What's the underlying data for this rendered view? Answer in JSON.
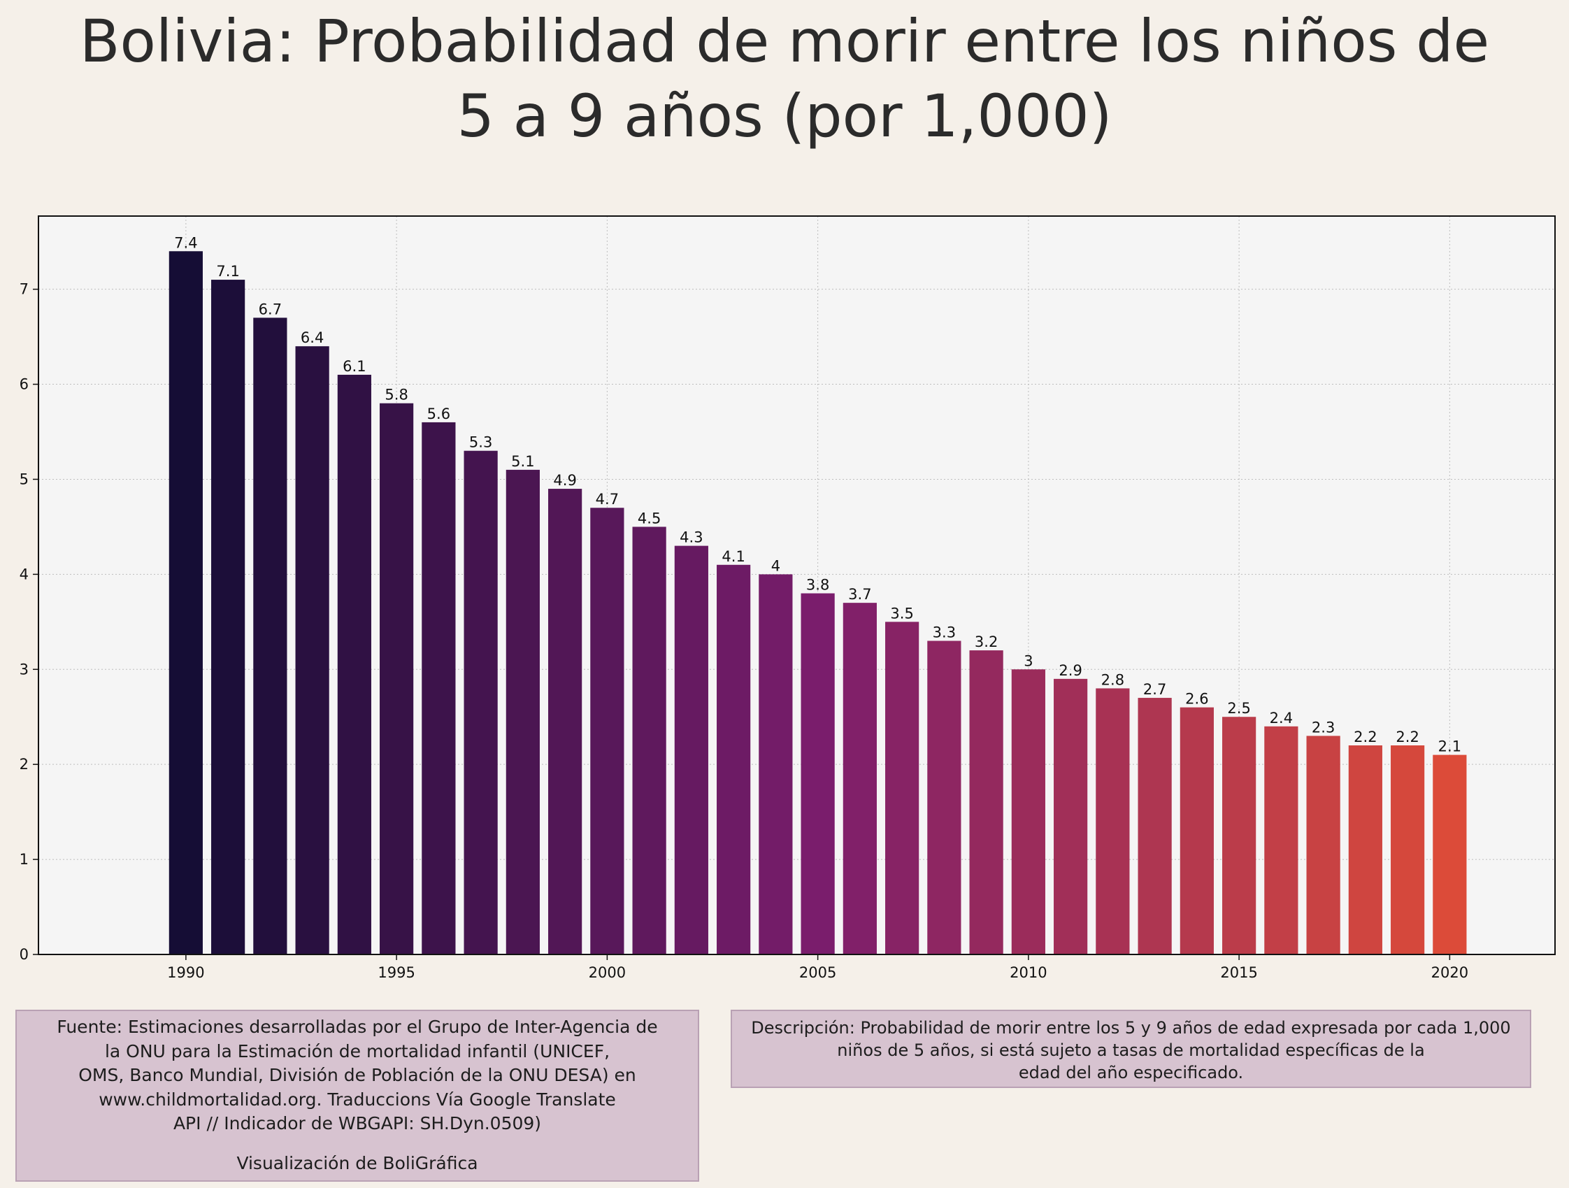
{
  "header": {
    "title_line1": "Bolivia:  Probabilidad de morir entre los niños de",
    "title_line2": "5 a 9 años (por 1,000)"
  },
  "chart_data": {
    "type": "bar",
    "title": "Bolivia:  Probabilidad de morir entre los niños de 5 a 9 años (por 1,000)",
    "xlabel": "",
    "ylabel": "",
    "categories": [
      1990,
      1991,
      1992,
      1993,
      1994,
      1995,
      1996,
      1997,
      1998,
      1999,
      2000,
      2001,
      2002,
      2003,
      2004,
      2005,
      2006,
      2007,
      2008,
      2009,
      2010,
      2011,
      2012,
      2013,
      2014,
      2015,
      2016,
      2017,
      2018,
      2019,
      2020
    ],
    "values": [
      7.4,
      7.1,
      6.7,
      6.4,
      6.1,
      5.8,
      5.6,
      5.3,
      5.1,
      4.9,
      4.7,
      4.5,
      4.3,
      4.1,
      4,
      3.8,
      3.7,
      3.5,
      3.3,
      3.2,
      3,
      2.9,
      2.8,
      2.7,
      2.6,
      2.5,
      2.4,
      2.3,
      2.2,
      2.2,
      2.1
    ],
    "value_labels": [
      "7.4",
      "7.1",
      "6.7",
      "6.4",
      "6.1",
      "5.8",
      "5.6",
      "5.3",
      "5.1",
      "4.9",
      "4.7",
      "4.5",
      "4.3",
      "4.1",
      "4",
      "3.8",
      "3.7",
      "3.5",
      "3.3",
      "3.2",
      "3",
      "2.9",
      "2.8",
      "2.7",
      "2.6",
      "2.5",
      "2.4",
      "2.3",
      "2.2",
      "2.2",
      "2.1"
    ],
    "xlim": [
      1986.5,
      2022.5
    ],
    "ylim": [
      0,
      7.77
    ],
    "xticks": [
      "1990",
      "1995",
      "2000",
      "2005",
      "2010",
      "2015",
      "2020"
    ],
    "yticks": [
      "0",
      "1",
      "2",
      "3",
      "4",
      "5",
      "6",
      "7"
    ],
    "grid": true,
    "legend": "none",
    "colors": {
      "start": "#150d35",
      "mid": "#7a1d6c",
      "end": "#dc4b39",
      "plot_background": "#f5f5f5",
      "page_background": "#f5f0e9",
      "grid": "#bdbdbd"
    }
  },
  "footer": {
    "source_lines": [
      "Fuente: Estimaciones desarrolladas por el Grupo de Inter-Agencia de",
      "la ONU para la Estimación de mortalidad infantil (UNICEF,",
      "OMS, Banco Mundial, División de Población de la ONU DESA) en",
      "www.childmortalidad.org. Traduccions Vía Google Translate",
      "API // Indicador de WBGAPI: SH.Dyn.0509)"
    ],
    "credit": "Visualización de BoliGráfica",
    "description_lines": [
      "Descripción: Probabilidad de morir entre los 5 y 9 años de edad expresada por cada 1,000",
      "niños de 5 años, si está sujeto a tasas de mortalidad específicas de la",
      "edad del año especificado."
    ]
  }
}
